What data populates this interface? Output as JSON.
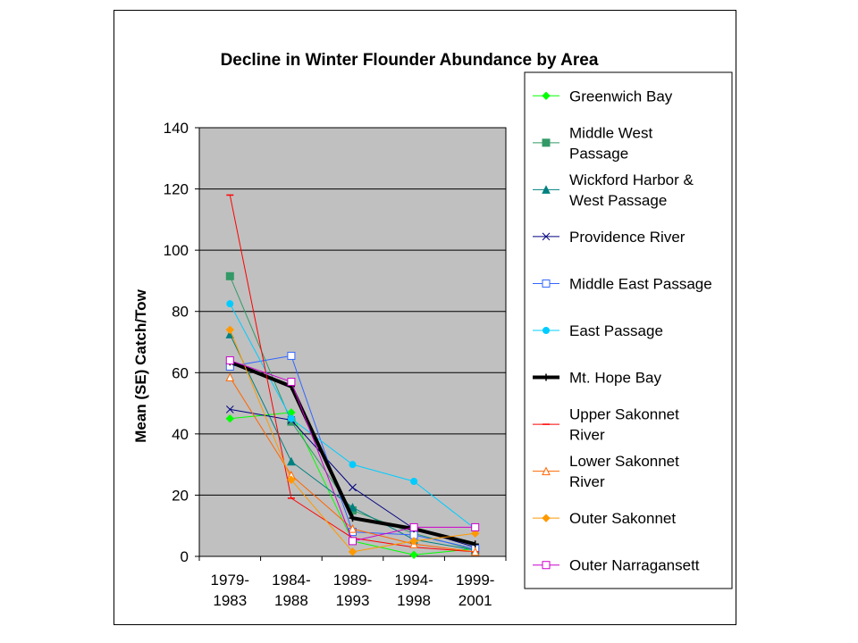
{
  "chart_data": {
    "type": "line",
    "title": "Decline in Winter Flounder Abundance by Area",
    "xlabel": "",
    "ylabel": "Mean (SE) Catch/Tow",
    "ylim": [
      0,
      140
    ],
    "yticks": [
      0,
      20,
      40,
      60,
      80,
      100,
      120,
      140
    ],
    "categories": [
      [
        "1979-",
        "1983"
      ],
      [
        "1984-",
        "1988"
      ],
      [
        "1989-",
        "1993"
      ],
      [
        "1994-",
        "1998"
      ],
      [
        "1999-",
        "2001"
      ]
    ],
    "grid": true,
    "plot_background": "#c0c0c0",
    "legend_position": "right",
    "series": [
      {
        "name": [
          "Greenwich Bay"
        ],
        "color": "#00ff00",
        "marker": "diamond-filled",
        "width": 1,
        "values": [
          45,
          47,
          5,
          0.5,
          2.5
        ]
      },
      {
        "name": [
          "Middle West",
          "Passage"
        ],
        "color": "#339966",
        "marker": "square-filled",
        "width": 1,
        "values": [
          91.5,
          44,
          15,
          7.5,
          2
        ]
      },
      {
        "name": [
          "Wickford Harbor &",
          "West Passage"
        ],
        "color": "#008080",
        "marker": "triangle-filled",
        "width": 1,
        "values": [
          72.5,
          31,
          16,
          5.5,
          2
        ]
      },
      {
        "name": [
          "Providence River"
        ],
        "color": "#000080",
        "marker": "x",
        "width": 1,
        "values": [
          48,
          44.5,
          22.5,
          9,
          3
        ]
      },
      {
        "name": [
          "Middle East Passage"
        ],
        "color": "#3366ff",
        "marker": "square-open",
        "width": 1,
        "values": [
          62,
          65.5,
          8,
          7,
          2.5
        ]
      },
      {
        "name": [
          "East Passage"
        ],
        "color": "#00ccff",
        "marker": "circle-filled",
        "width": 1,
        "values": [
          82.5,
          45,
          30,
          24.5,
          9
        ]
      },
      {
        "name": [
          "Mt. Hope Bay"
        ],
        "color": "#000000",
        "marker": "plus",
        "width": 4,
        "values": [
          63.5,
          55.5,
          12.5,
          9,
          4
        ]
      },
      {
        "name": [
          "Upper Sakonnet",
          "River"
        ],
        "color": "#ff0000",
        "marker": "dash",
        "width": 1,
        "values": [
          118,
          19,
          6,
          3,
          1.5
        ]
      },
      {
        "name": [
          "Lower Sakonnet",
          "River"
        ],
        "color": "#ff6600",
        "marker": "triangle-open",
        "width": 1,
        "values": [
          58.5,
          26.5,
          9,
          4,
          1.5
        ]
      },
      {
        "name": [
          "Outer Sakonnet"
        ],
        "color": "#ff9900",
        "marker": "diamond-filled",
        "width": 1,
        "values": [
          74,
          25,
          1.5,
          5,
          7.5
        ]
      },
      {
        "name": [
          "Outer Narragansett"
        ],
        "color": "#cc00cc",
        "marker": "square-open",
        "width": 1,
        "values": [
          64,
          57,
          5,
          9.5,
          9.5
        ]
      }
    ]
  }
}
